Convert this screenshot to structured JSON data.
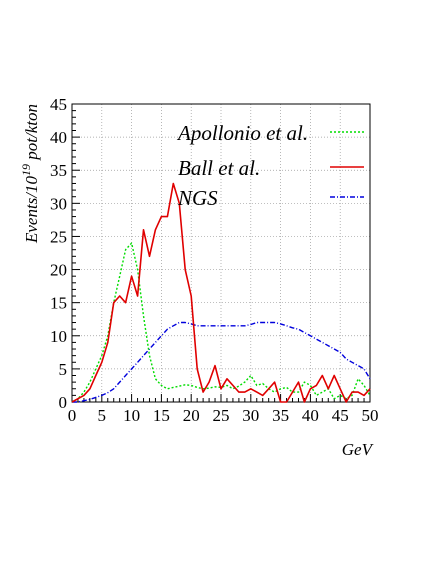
{
  "chart_data": {
    "type": "line",
    "xlabel": "GeV",
    "ylabel_prefix": "Events/10",
    "ylabel_exponent": "19",
    "ylabel_suffix": " pot/kton",
    "xlim": [
      0,
      50
    ],
    "ylim": [
      0,
      45
    ],
    "xticks": [
      0,
      5,
      10,
      15,
      20,
      25,
      30,
      35,
      40,
      45,
      50
    ],
    "yticks": [
      0,
      5,
      10,
      15,
      20,
      25,
      30,
      35,
      40,
      45
    ],
    "grid": true,
    "legend_position": "top-right",
    "series": [
      {
        "name": "Apollonio et al.",
        "color": "#00dd00",
        "dash": "dotted",
        "x": [
          1,
          2,
          3,
          4,
          5,
          6,
          7,
          8,
          9,
          10,
          11,
          12,
          13,
          14,
          15,
          16,
          17,
          18,
          19,
          20,
          21,
          22,
          23,
          24,
          25,
          26,
          27,
          28,
          29,
          30,
          31,
          32,
          33,
          34,
          35,
          36,
          37,
          38,
          39,
          40,
          41,
          42,
          43,
          44,
          45,
          46,
          47,
          48,
          49,
          50
        ],
        "y": [
          0.5,
          1.5,
          3,
          5,
          7,
          10,
          15,
          19,
          23,
          24,
          20,
          13,
          7,
          3.5,
          2.5,
          2,
          2.2,
          2.4,
          2.6,
          2.5,
          2.2,
          2,
          2.1,
          2.3,
          2.2,
          2.5,
          2,
          2.4,
          3,
          4,
          2.5,
          2.8,
          2,
          1.5,
          2,
          2.2,
          1.5,
          1.5,
          3,
          2.5,
          1,
          1.5,
          2,
          0.5,
          1,
          0.5,
          1,
          3.5,
          2.5,
          1
        ]
      },
      {
        "name": "Ball et al.",
        "color": "#e00000",
        "dash": "solid",
        "x": [
          1,
          2,
          3,
          4,
          5,
          6,
          7,
          8,
          9,
          10,
          11,
          12,
          13,
          14,
          15,
          16,
          17,
          18,
          19,
          20,
          21,
          22,
          23,
          24,
          25,
          26,
          27,
          28,
          29,
          30,
          31,
          32,
          33,
          34,
          35,
          36,
          37,
          38,
          39,
          40,
          41,
          42,
          43,
          44,
          45,
          46,
          47,
          48,
          49,
          50
        ],
        "y": [
          0.5,
          1,
          2,
          4,
          6,
          9,
          15,
          16,
          15,
          19,
          16,
          26,
          22,
          26,
          28,
          28,
          33,
          30,
          20,
          16,
          5,
          1.5,
          3,
          5.5,
          2,
          3.5,
          2.5,
          1.5,
          1.5,
          2,
          1.5,
          1,
          2,
          3,
          0,
          0,
          1.5,
          3,
          0,
          2,
          2.5,
          4,
          2,
          4,
          2,
          0,
          1.5,
          1.5,
          1,
          2
        ]
      },
      {
        "name": "NGS",
        "color": "#0000dd",
        "dash": "dashdot",
        "x": [
          1,
          2,
          3,
          4,
          5,
          6,
          7,
          8,
          9,
          10,
          11,
          12,
          13,
          14,
          15,
          16,
          17,
          18,
          19,
          20,
          21,
          22,
          23,
          24,
          25,
          26,
          27,
          28,
          29,
          30,
          31,
          32,
          33,
          34,
          35,
          36,
          37,
          38,
          39,
          40,
          41,
          42,
          43,
          44,
          45,
          46,
          47,
          48,
          49,
          50
        ],
        "y": [
          0,
          0.2,
          0.4,
          0.7,
          1,
          1.4,
          2,
          3,
          4,
          5,
          6,
          7,
          8,
          9,
          10,
          11,
          11.5,
          12,
          12,
          11.8,
          11.5,
          11.5,
          11.5,
          11.5,
          11.5,
          11.5,
          11.5,
          11.5,
          11.5,
          11.7,
          12,
          12,
          12,
          12,
          11.8,
          11.5,
          11.2,
          11,
          10.5,
          10,
          9.5,
          9,
          8.5,
          8,
          7.5,
          6.5,
          6,
          5.5,
          5,
          3.5
        ]
      }
    ]
  }
}
